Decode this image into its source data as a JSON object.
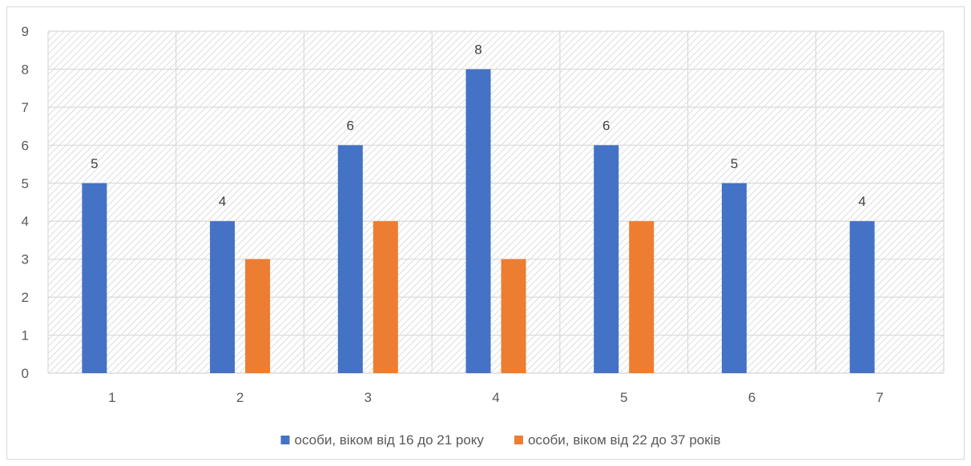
{
  "chart_data": {
    "type": "bar",
    "title": "",
    "xlabel": "",
    "ylabel": "",
    "categories": [
      "1",
      "2",
      "3",
      "4",
      "5",
      "6",
      "7"
    ],
    "ylim": [
      0,
      9
    ],
    "yticks": [
      "0",
      "1",
      "2",
      "3",
      "4",
      "5",
      "6",
      "7",
      "8",
      "9"
    ],
    "grid": true,
    "legend_position": "bottom",
    "series": [
      {
        "name": "особи, віком від 16 до 21 року",
        "color": "#4472c4",
        "values": [
          5,
          4,
          6,
          8,
          6,
          5,
          4
        ],
        "show_labels": true
      },
      {
        "name": "особи, віком від 22 до 37 років",
        "color": "#ed7d31",
        "values": [
          0,
          3,
          4,
          3,
          4,
          0,
          0
        ],
        "show_labels": false
      }
    ]
  }
}
